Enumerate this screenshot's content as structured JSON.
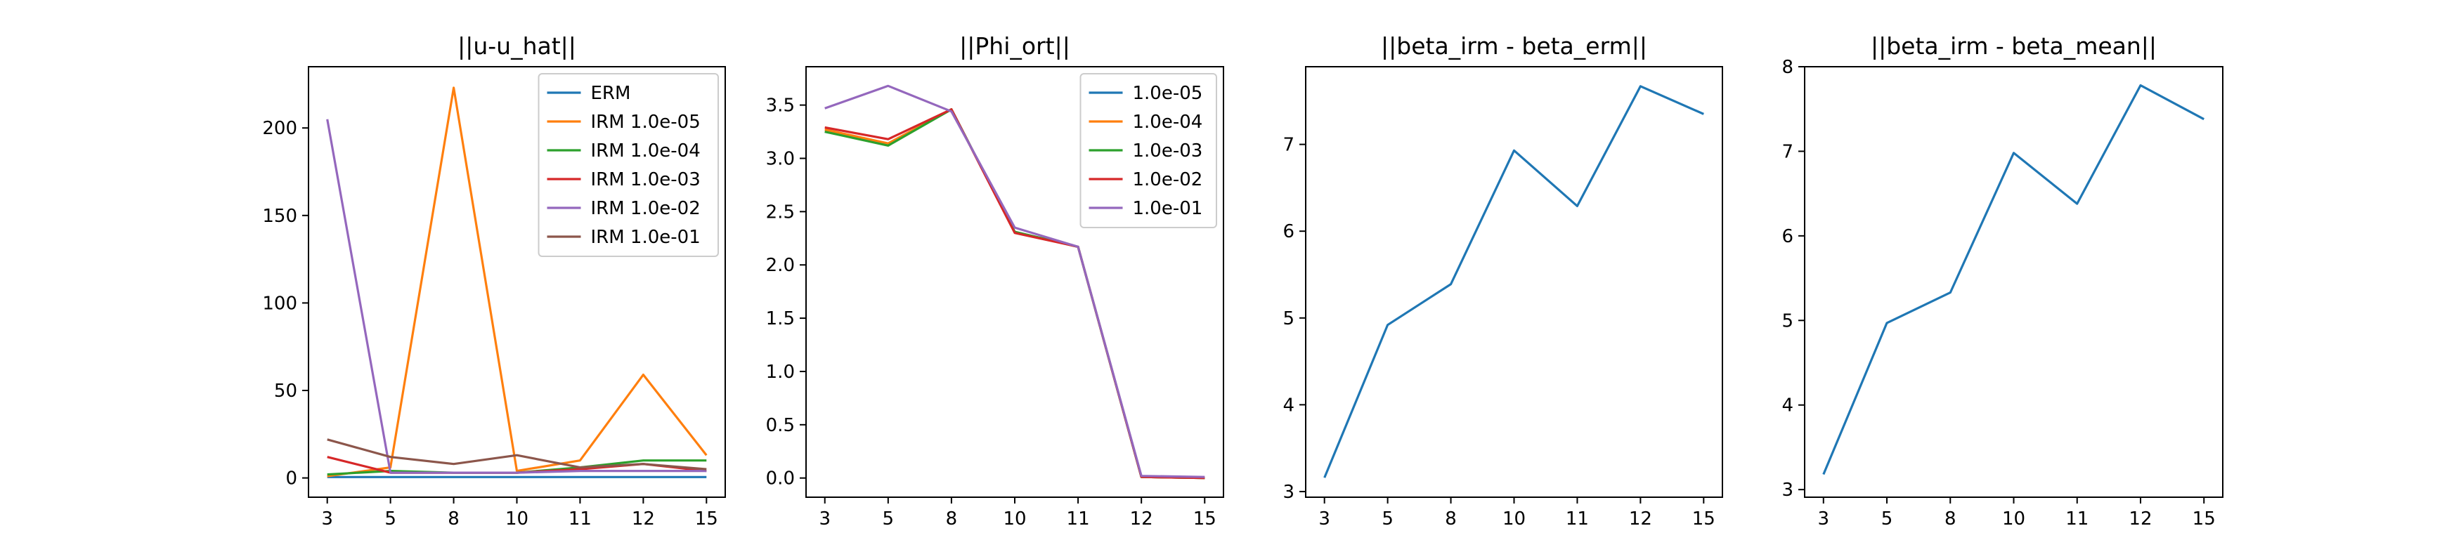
{
  "chart_data": [
    {
      "type": "line",
      "title": "||u-u_hat||",
      "xlabel": "",
      "ylabel": "",
      "categories": [
        "3",
        "5",
        "8",
        "10",
        "11",
        "12",
        "15"
      ],
      "ylim": [
        -11,
        235
      ],
      "yticks": [
        0,
        50,
        100,
        150,
        200
      ],
      "grid": false,
      "legend": "upper-right",
      "series": [
        {
          "name": "ERM",
          "color": "#1f77b4",
          "values": [
            0.5,
            0.5,
            0.5,
            0.5,
            0.5,
            0.5,
            0.5
          ]
        },
        {
          "name": "IRM 1.0e-05",
          "color": "#ff7f0e",
          "values": [
            1,
            6,
            223,
            4,
            10,
            59,
            13
          ]
        },
        {
          "name": "IRM 1.0e-04",
          "color": "#2ca02c",
          "values": [
            2,
            4,
            3,
            3,
            6,
            10,
            10
          ]
        },
        {
          "name": "IRM 1.0e-03",
          "color": "#d62728",
          "values": [
            12,
            3,
            3,
            3,
            5,
            8,
            4
          ]
        },
        {
          "name": "IRM 1.0e-02",
          "color": "#9467bd",
          "values": [
            205,
            3,
            3,
            3,
            4,
            4,
            4
          ]
        },
        {
          "name": "IRM 1.0e-01",
          "color": "#8c564b",
          "values": [
            22,
            12,
            8,
            13,
            6,
            8,
            5
          ]
        }
      ]
    },
    {
      "type": "line",
      "title": "||Phi_ort||",
      "xlabel": "",
      "ylabel": "",
      "categories": [
        "3",
        "5",
        "8",
        "10",
        "11",
        "12",
        "15"
      ],
      "ylim": [
        -0.18,
        3.86
      ],
      "yticks": [
        0.0,
        0.5,
        1.0,
        1.5,
        2.0,
        2.5,
        3.0,
        3.5
      ],
      "ytick_labels": [
        "0.0",
        "0.5",
        "1.0",
        "1.5",
        "2.0",
        "2.5",
        "3.0",
        "3.5"
      ],
      "grid": false,
      "legend": "upper-right",
      "series": [
        {
          "name": "1.0e-05",
          "color": "#1f77b4",
          "values": [
            3.25,
            3.13,
            3.46,
            2.31,
            2.17,
            0.01,
            0.0
          ]
        },
        {
          "name": "1.0e-04",
          "color": "#ff7f0e",
          "values": [
            3.27,
            3.14,
            3.46,
            2.31,
            2.17,
            0.01,
            0.0
          ]
        },
        {
          "name": "1.0e-03",
          "color": "#2ca02c",
          "values": [
            3.25,
            3.12,
            3.46,
            2.31,
            2.17,
            0.01,
            0.0
          ]
        },
        {
          "name": "1.0e-02",
          "color": "#d62728",
          "values": [
            3.29,
            3.18,
            3.46,
            2.3,
            2.17,
            0.01,
            0.0
          ]
        },
        {
          "name": "1.0e-01",
          "color": "#9467bd",
          "values": [
            3.47,
            3.68,
            3.44,
            2.35,
            2.17,
            0.02,
            0.01
          ]
        }
      ]
    },
    {
      "type": "line",
      "title": "||beta_irm - beta_erm||",
      "xlabel": "",
      "ylabel": "",
      "categories": [
        "3",
        "5",
        "8",
        "10",
        "11",
        "12",
        "15"
      ],
      "ylim": [
        2.935,
        7.895
      ],
      "yticks": [
        3,
        4,
        5,
        6,
        7
      ],
      "grid": false,
      "series": [
        {
          "color": "#1f77b4",
          "values": [
            3.16,
            4.92,
            5.39,
            6.93,
            6.29,
            7.67,
            7.35
          ]
        }
      ]
    },
    {
      "type": "line",
      "title": "||beta_irm - beta_mean||",
      "xlabel": "",
      "ylabel": "",
      "categories": [
        "3",
        "5",
        "8",
        "10",
        "11",
        "12",
        "15"
      ],
      "ylim": [
        2.91,
        8.0
      ],
      "yticks": [
        3,
        4,
        5,
        6,
        7,
        8
      ],
      "grid": false,
      "series": [
        {
          "color": "#1f77b4",
          "values": [
            3.18,
            4.97,
            5.33,
            6.98,
            6.38,
            7.78,
            7.38
          ]
        }
      ]
    }
  ]
}
